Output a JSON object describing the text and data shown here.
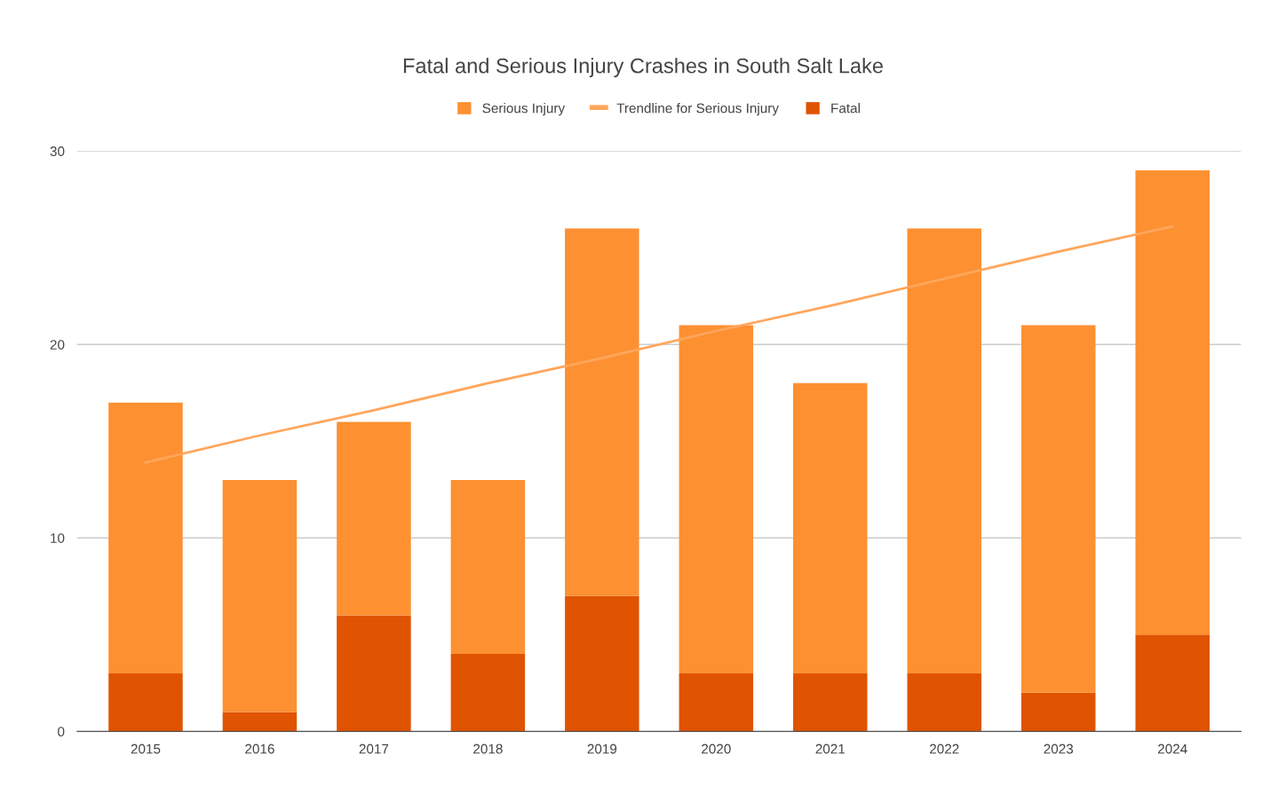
{
  "chart_data": {
    "type": "bar",
    "title": "Fatal and Serious Injury Crashes in South Salt Lake",
    "categories": [
      "2015",
      "2016",
      "2017",
      "2018",
      "2019",
      "2020",
      "2021",
      "2022",
      "2023",
      "2024"
    ],
    "stacked": true,
    "series": [
      {
        "name": "Fatal",
        "color": "#e05300",
        "values": [
          3,
          1,
          6,
          4,
          7,
          3,
          3,
          3,
          2,
          5
        ]
      },
      {
        "name": "Serious Injury",
        "color": "#fd9031",
        "values": [
          14,
          12,
          10,
          9,
          19,
          18,
          15,
          23,
          19,
          24
        ]
      },
      {
        "name": "Trendline for Serious Injury",
        "type": "line",
        "color": "#ffa65c",
        "values": [
          13.9,
          15.3,
          16.6,
          18.0,
          19.3,
          20.7,
          22.0,
          23.4,
          24.8,
          26.1
        ]
      }
    ],
    "ylim": [
      0,
      30
    ],
    "yticks": [
      0,
      10,
      20,
      30
    ],
    "grid": "y",
    "legend": "top"
  }
}
